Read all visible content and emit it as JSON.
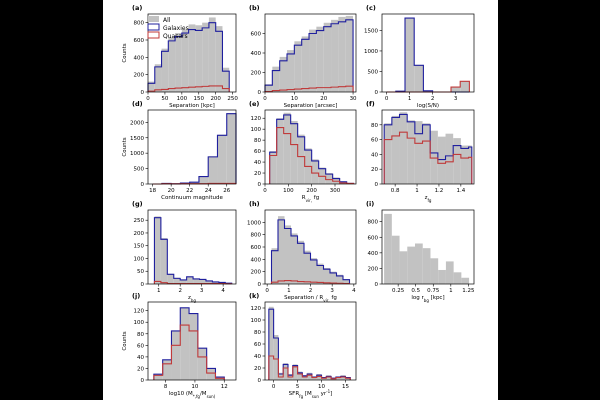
{
  "colors": {
    "all": "#c2c2c2",
    "galaxies": "#1f1f9e",
    "quasars": "#c03a3a",
    "axis": "#000000",
    "background": "#000000",
    "panel": "#ffffff"
  },
  "legend": {
    "all": "All",
    "galaxies": "Galaxies",
    "quasars": "Quasars"
  },
  "chart_data": [
    {
      "panel": "(a)",
      "type": "bar",
      "xlabel": "Separation [kpc]",
      "ylabel": "Counts",
      "xlim": [
        0,
        260
      ],
      "ylim": [
        0,
        900
      ],
      "xticks": [
        0,
        50,
        100,
        150,
        200,
        250
      ],
      "yticks": [
        0,
        200,
        400,
        600,
        800
      ],
      "edges": [
        0,
        20,
        40,
        60,
        80,
        100,
        120,
        140,
        160,
        180,
        200,
        220,
        240
      ],
      "series": [
        {
          "name": "All",
          "values": [
            120,
            320,
            500,
            630,
            680,
            720,
            780,
            770,
            800,
            860,
            760,
            280
          ]
        },
        {
          "name": "Galaxies",
          "values": [
            100,
            290,
            470,
            590,
            640,
            680,
            720,
            710,
            740,
            800,
            700,
            240
          ]
        },
        {
          "name": "Quasars",
          "values": [
            10,
            25,
            30,
            40,
            45,
            50,
            55,
            60,
            65,
            70,
            70,
            40
          ]
        }
      ]
    },
    {
      "panel": "(b)",
      "type": "bar",
      "xlabel": "Separation [arcsec]",
      "ylabel": "",
      "xlim": [
        0,
        31
      ],
      "ylim": [
        0,
        800
      ],
      "xticks": [
        0,
        10,
        20,
        30
      ],
      "yticks": [
        0,
        200,
        400,
        600
      ],
      "edges": [
        0,
        2.5,
        5,
        7.5,
        10,
        12.5,
        15,
        17.5,
        20,
        22.5,
        25,
        27.5,
        30
      ],
      "series": [
        {
          "name": "All",
          "values": [
            80,
            260,
            360,
            430,
            520,
            570,
            640,
            670,
            710,
            740,
            770,
            780
          ]
        },
        {
          "name": "Galaxies",
          "values": [
            70,
            220,
            320,
            390,
            480,
            540,
            600,
            630,
            670,
            700,
            720,
            740
          ]
        },
        {
          "name": "Quasars",
          "values": [
            5,
            15,
            20,
            25,
            30,
            35,
            40,
            45,
            45,
            50,
            55,
            60
          ]
        }
      ]
    },
    {
      "panel": "(c)",
      "type": "bar",
      "xlabel": "log(S/N)",
      "ylabel": "",
      "xlim": [
        -0.2,
        3.8
      ],
      "ylim": [
        0,
        1900
      ],
      "xticks": [
        0,
        1,
        2,
        3
      ],
      "yticks": [
        0,
        500,
        1000,
        1500
      ],
      "edges": [
        0,
        0.4,
        0.8,
        1.2,
        1.6,
        2.0,
        2.4,
        2.8,
        3.2,
        3.6
      ],
      "series": [
        {
          "name": "All",
          "values": [
            0,
            20,
            1800,
            650,
            30,
            0,
            0,
            120,
            260
          ]
        },
        {
          "name": "Galaxies",
          "values": [
            0,
            20,
            1800,
            650,
            30,
            0,
            0,
            0,
            0
          ]
        },
        {
          "name": "Quasars",
          "values": [
            0,
            0,
            0,
            0,
            0,
            0,
            0,
            120,
            260
          ]
        }
      ]
    },
    {
      "panel": "(d)",
      "type": "bar",
      "xlabel": "Continuum magnitude",
      "ylabel": "Counts",
      "xlim": [
        17.5,
        27
      ],
      "ylim": [
        0,
        2400
      ],
      "xticks": [
        18,
        20,
        22,
        24,
        26
      ],
      "yticks": [
        0,
        500,
        1000,
        1500,
        2000
      ],
      "edges": [
        18,
        19,
        20,
        21,
        22,
        23,
        24,
        25,
        26,
        27
      ],
      "series": [
        {
          "name": "All",
          "values": [
            0,
            30,
            10,
            40,
            70,
            250,
            900,
            1600,
            2300
          ]
        },
        {
          "name": "Galaxies",
          "values": [
            0,
            20,
            5,
            30,
            60,
            240,
            880,
            1580,
            2280
          ]
        },
        {
          "name": "Quasars",
          "values": [
            0,
            10,
            5,
            10,
            10,
            10,
            20,
            20,
            20
          ]
        }
      ]
    },
    {
      "panel": "(e)",
      "type": "bar",
      "xlabel": "R_vir, fg",
      "ylabel": "",
      "xlim": [
        0,
        390
      ],
      "ylim": [
        0,
        135
      ],
      "xticks": [
        0,
        100,
        200,
        300
      ],
      "yticks": [
        0,
        20,
        40,
        60,
        80,
        100,
        120
      ],
      "edges": [
        20,
        50,
        80,
        110,
        140,
        170,
        200,
        230,
        260,
        290,
        320,
        350,
        380
      ],
      "series": [
        {
          "name": "All",
          "values": [
            60,
            120,
            130,
            115,
            90,
            65,
            45,
            30,
            20,
            12,
            5,
            2
          ]
        },
        {
          "name": "Galaxies",
          "values": [
            58,
            118,
            126,
            110,
            86,
            62,
            42,
            28,
            18,
            10,
            4,
            1
          ]
        },
        {
          "name": "Quasars",
          "values": [
            52,
            103,
            92,
            72,
            50,
            32,
            20,
            14,
            8,
            5,
            2,
            1
          ]
        }
      ]
    },
    {
      "panel": "(f)",
      "type": "bar",
      "xlabel": "z_fg",
      "ylabel": "",
      "xlim": [
        0.68,
        1.52
      ],
      "ylim": [
        0,
        100
      ],
      "xticks": [
        0.8,
        1.0,
        1.2,
        1.4
      ],
      "yticks": [
        0,
        20,
        40,
        60,
        80
      ],
      "edges": [
        0.7,
        0.77,
        0.84,
        0.91,
        0.98,
        1.05,
        1.12,
        1.19,
        1.26,
        1.33,
        1.4,
        1.47,
        1.5
      ],
      "series": [
        {
          "name": "All",
          "values": [
            82,
            92,
            97,
            86,
            85,
            82,
            72,
            64,
            68,
            62,
            52,
            52
          ]
        },
        {
          "name": "Galaxies",
          "values": [
            80,
            90,
            94,
            84,
            68,
            80,
            42,
            33,
            38,
            52,
            48,
            50
          ]
        },
        {
          "name": "Quasars",
          "values": [
            60,
            65,
            70,
            62,
            55,
            58,
            35,
            28,
            30,
            40,
            35,
            36
          ]
        }
      ]
    },
    {
      "panel": "(g)",
      "type": "bar",
      "xlabel": "z_bg",
      "ylabel": "",
      "xlim": [
        0.5,
        4.6
      ],
      "ylim": [
        0,
        290
      ],
      "xticks": [
        1,
        2,
        3,
        4
      ],
      "yticks": [
        0,
        50,
        100,
        150,
        200,
        250
      ],
      "edges": [
        0.8,
        1.1,
        1.4,
        1.7,
        2.0,
        2.3,
        2.6,
        2.9,
        3.2,
        3.5,
        3.8,
        4.1,
        4.4
      ],
      "series": [
        {
          "name": "All",
          "values": [
            265,
            180,
            40,
            25,
            18,
            30,
            22,
            20,
            14,
            10,
            8,
            4
          ]
        },
        {
          "name": "Galaxies",
          "values": [
            260,
            175,
            38,
            22,
            16,
            28,
            20,
            18,
            12,
            8,
            6,
            3
          ]
        },
        {
          "name": "Quasars",
          "values": [
            10,
            5,
            2,
            2,
            2,
            2,
            2,
            2,
            2,
            2,
            2,
            1
          ]
        }
      ]
    },
    {
      "panel": "(h)",
      "type": "bar",
      "xlabel": "Separation / R_vir, fg",
      "ylabel": "",
      "xlim": [
        -0.1,
        4.1
      ],
      "ylim": [
        0,
        1200
      ],
      "xticks": [
        0,
        1,
        2,
        3,
        4
      ],
      "yticks": [
        0,
        200,
        400,
        600,
        800,
        1000
      ],
      "edges": [
        0.2,
        0.5,
        0.8,
        1.1,
        1.4,
        1.7,
        2.0,
        2.3,
        2.6,
        2.9,
        3.2,
        3.5,
        3.8
      ],
      "series": [
        {
          "name": "All",
          "values": [
            580,
            1100,
            950,
            820,
            700,
            540,
            420,
            330,
            260,
            200,
            150,
            80
          ]
        },
        {
          "name": "Galaxies",
          "values": [
            540,
            1040,
            900,
            780,
            660,
            500,
            390,
            300,
            240,
            180,
            130,
            70
          ]
        },
        {
          "name": "Quasars",
          "values": [
            30,
            50,
            55,
            50,
            40,
            35,
            30,
            25,
            20,
            15,
            12,
            8
          ]
        }
      ]
    },
    {
      "panel": "(i)",
      "type": "bar",
      "xlabel": "log r_bg [kpc]",
      "ylabel": "",
      "xlim": [
        0.02,
        1.33
      ],
      "ylim": [
        0,
        950
      ],
      "xticks": [
        0.25,
        0.5,
        0.75,
        1.0,
        1.25
      ],
      "yticks": [
        0,
        200,
        400,
        600,
        800
      ],
      "edges": [
        0.05,
        0.16,
        0.27,
        0.38,
        0.49,
        0.6,
        0.71,
        0.82,
        0.93,
        1.04,
        1.15,
        1.26
      ],
      "series": [
        {
          "name": "All",
          "values": [
            900,
            620,
            420,
            480,
            520,
            460,
            330,
            180,
            290,
            150,
            80
          ]
        }
      ]
    },
    {
      "panel": "(j)",
      "type": "bar",
      "xlabel": "log10 (M_*,fg/M_sun)",
      "ylabel": "Counts",
      "xlim": [
        6.8,
        12.8
      ],
      "ylim": [
        0,
        135
      ],
      "xticks": [
        8,
        10,
        12
      ],
      "yticks": [
        0,
        20,
        40,
        60,
        80,
        100,
        120
      ],
      "edges": [
        7.2,
        7.8,
        8.4,
        9.0,
        9.6,
        10.2,
        10.8,
        11.4,
        12.0
      ],
      "series": [
        {
          "name": "All",
          "values": [
            10,
            35,
            85,
            125,
            115,
            55,
            20,
            5
          ]
        },
        {
          "name": "Galaxies",
          "values": [
            10,
            35,
            85,
            125,
            115,
            55,
            20,
            5
          ]
        },
        {
          "name": "Quasars",
          "values": [
            8,
            28,
            60,
            95,
            85,
            40,
            12,
            3
          ]
        }
      ]
    },
    {
      "panel": "(k)",
      "type": "bar",
      "xlabel": "SFR_fg [M_sun yr^-1]",
      "ylabel": "",
      "xlim": [
        -1.8,
        17.2
      ],
      "ylim": [
        0,
        130
      ],
      "xticks": [
        0,
        5,
        10,
        15
      ],
      "yticks": [
        0,
        20,
        40,
        60,
        80,
        100,
        120
      ],
      "edges": [
        -1,
        0,
        1,
        2,
        3,
        4,
        5,
        6,
        7,
        8,
        9,
        10,
        11,
        12,
        13,
        14,
        15,
        16
      ],
      "series": [
        {
          "name": "All",
          "values": [
            122,
            75,
            12,
            28,
            10,
            26,
            14,
            8,
            12,
            6,
            10,
            5,
            8,
            4,
            6,
            8,
            5
          ]
        },
        {
          "name": "Galaxies",
          "values": [
            118,
            70,
            10,
            26,
            8,
            24,
            12,
            7,
            10,
            5,
            8,
            4,
            6,
            3,
            5,
            6,
            4
          ]
        },
        {
          "name": "Quasars",
          "values": [
            40,
            35,
            5,
            20,
            5,
            22,
            10,
            5,
            8,
            4,
            6,
            3,
            5,
            2,
            4,
            5,
            3
          ]
        }
      ]
    }
  ]
}
